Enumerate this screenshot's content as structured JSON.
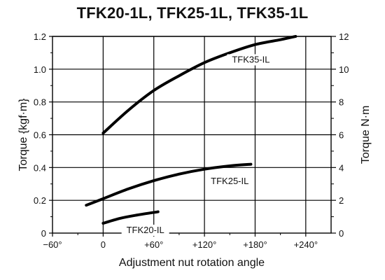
{
  "title": "TFK20-1L, TFK25-1L, TFK35-1L",
  "chart_data": {
    "type": "line",
    "title": "TFK20-1L, TFK25-1L, TFK35-1L",
    "xlabel": "Adjustment nut rotation angle",
    "ylabel": "Torque {kgf·m}",
    "y2label": "Torque N·m",
    "xlim": [
      -60,
      270
    ],
    "ylim": [
      0,
      1.2
    ],
    "y2lim": [
      0,
      12
    ],
    "grid": true,
    "x_ticks": [
      -60,
      0,
      60,
      120,
      180,
      240
    ],
    "x_tick_labels": [
      "−60°",
      "0",
      "+60°",
      "+120°",
      "+180°",
      "+240°"
    ],
    "y_ticks": [
      0,
      0.2,
      0.4,
      0.6,
      0.8,
      1.0,
      1.2
    ],
    "y_tick_labels": [
      "0",
      "0.2",
      "0.4",
      "0.6",
      "0.8",
      "1.0",
      "1.2"
    ],
    "y2_ticks": [
      0,
      2,
      4,
      6,
      8,
      10,
      12
    ],
    "y2_tick_labels": [
      "0",
      "2",
      "4",
      "6",
      "8",
      "10",
      "12"
    ],
    "series": [
      {
        "name": "TFK35-IL",
        "x": [
          0,
          30,
          60,
          90,
          120,
          150,
          180,
          210,
          228
        ],
        "y": [
          0.61,
          0.75,
          0.87,
          0.96,
          1.04,
          1.1,
          1.15,
          1.18,
          1.2
        ]
      },
      {
        "name": "TFK25-IL",
        "x": [
          -20,
          0,
          30,
          60,
          90,
          120,
          150,
          175
        ],
        "y": [
          0.17,
          0.21,
          0.27,
          0.32,
          0.36,
          0.39,
          0.41,
          0.42
        ]
      },
      {
        "name": "TFK20-IL",
        "x": [
          0,
          20,
          40,
          65
        ],
        "y": [
          0.06,
          0.09,
          0.11,
          0.13
        ]
      }
    ],
    "annotations": [
      {
        "text": "TFK35-IL",
        "x": 175,
        "y": 1.04
      },
      {
        "text": "TFK25-IL",
        "x": 150,
        "y": 0.3
      },
      {
        "text": "TFK20-IL",
        "x": 50,
        "y": 0.0
      }
    ]
  }
}
